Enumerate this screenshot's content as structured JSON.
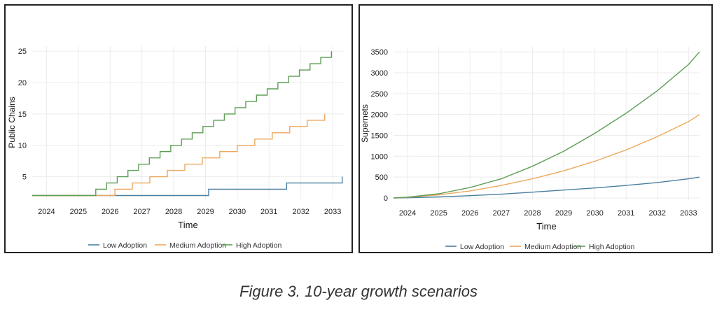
{
  "figure_caption": "Figure 3. 10-year growth scenarios",
  "colors": {
    "low": "#4a7fa0",
    "medium": "#eca85e",
    "high": "#5d9e55",
    "grid": "#ececec",
    "axis": "#333333"
  },
  "chart_data": [
    {
      "type": "line",
      "line_style": "step",
      "title": "",
      "xlabel": "Time",
      "ylabel": "Public Chains",
      "xlim": [
        2023.55,
        2033.35
      ],
      "ylim": [
        1.5,
        25.8
      ],
      "x_ticks": [
        2024,
        2025,
        2026,
        2027,
        2028,
        2029,
        2030,
        2031,
        2032,
        2033
      ],
      "x_tick_labels": [
        "2024",
        "2025",
        "2026",
        "2027",
        "2028",
        "2029",
        "2030",
        "2031",
        "2032",
        "2033"
      ],
      "y_ticks": [
        5,
        10,
        15,
        20,
        25
      ],
      "y_tick_labels": [
        "5",
        "10",
        "15",
        "20",
        "25"
      ],
      "grid": true,
      "legend_position": "bottom-center",
      "series": [
        {
          "name": "Low Adoption",
          "color_key": "low",
          "x": [
            2023.55,
            2029.1,
            2029.1,
            2031.55,
            2031.55,
            2033.3,
            2033.3
          ],
          "y": [
            2,
            2,
            3,
            3,
            4,
            4,
            5
          ]
        },
        {
          "name": "Medium Adoption",
          "color_key": "medium",
          "step_start": 2026.15,
          "step_end": 2033.3,
          "start_value": 2,
          "end_value": 15
        },
        {
          "name": "High Adoption",
          "color_key": "high",
          "step_start": 2025.55,
          "step_end": 2033.3,
          "start_value": 2,
          "end_value": 25
        }
      ],
      "legend": [
        "Low Adoption",
        "Medium Adoption",
        "High Adoption"
      ]
    },
    {
      "type": "line",
      "title": "",
      "xlabel": "Time",
      "ylabel": "Supernets",
      "xlim": [
        2023.55,
        2033.35
      ],
      "ylim": [
        -50,
        3620
      ],
      "x_ticks": [
        2024,
        2025,
        2026,
        2027,
        2028,
        2029,
        2030,
        2031,
        2032,
        2033
      ],
      "x_tick_labels": [
        "2024",
        "2025",
        "2026",
        "2027",
        "2028",
        "2029",
        "2030",
        "2031",
        "2032",
        "2033"
      ],
      "y_ticks": [
        0,
        500,
        1000,
        1500,
        2000,
        2500,
        3000,
        3500
      ],
      "y_tick_labels": [
        "0",
        "500",
        "1000",
        "1500",
        "2000",
        "2500",
        "3000",
        "3500"
      ],
      "grid": true,
      "legend_position": "bottom-center",
      "series": [
        {
          "name": "Low Adoption",
          "color_key": "low",
          "x": [
            2023.55,
            2024,
            2025,
            2026,
            2027,
            2028,
            2029,
            2030,
            2031,
            2032,
            2033,
            2033.35
          ],
          "y": [
            0,
            5,
            25,
            55,
            90,
            140,
            190,
            240,
            300,
            370,
            460,
            500
          ]
        },
        {
          "name": "Medium Adoption",
          "color_key": "medium",
          "x": [
            2023.55,
            2024,
            2025,
            2026,
            2027,
            2028,
            2029,
            2030,
            2031,
            2032,
            2033,
            2033.35
          ],
          "y": [
            0,
            15,
            75,
            170,
            300,
            460,
            650,
            880,
            1150,
            1470,
            1830,
            2000
          ]
        },
        {
          "name": "High Adoption",
          "color_key": "high",
          "x": [
            2023.55,
            2024,
            2025,
            2026,
            2027,
            2028,
            2029,
            2030,
            2031,
            2032,
            2033,
            2033.35
          ],
          "y": [
            0,
            20,
            100,
            250,
            460,
            760,
            1120,
            1550,
            2030,
            2570,
            3200,
            3500
          ]
        }
      ],
      "legend": [
        "Low Adoption",
        "Medium Adoption",
        "High Adoption"
      ]
    }
  ]
}
